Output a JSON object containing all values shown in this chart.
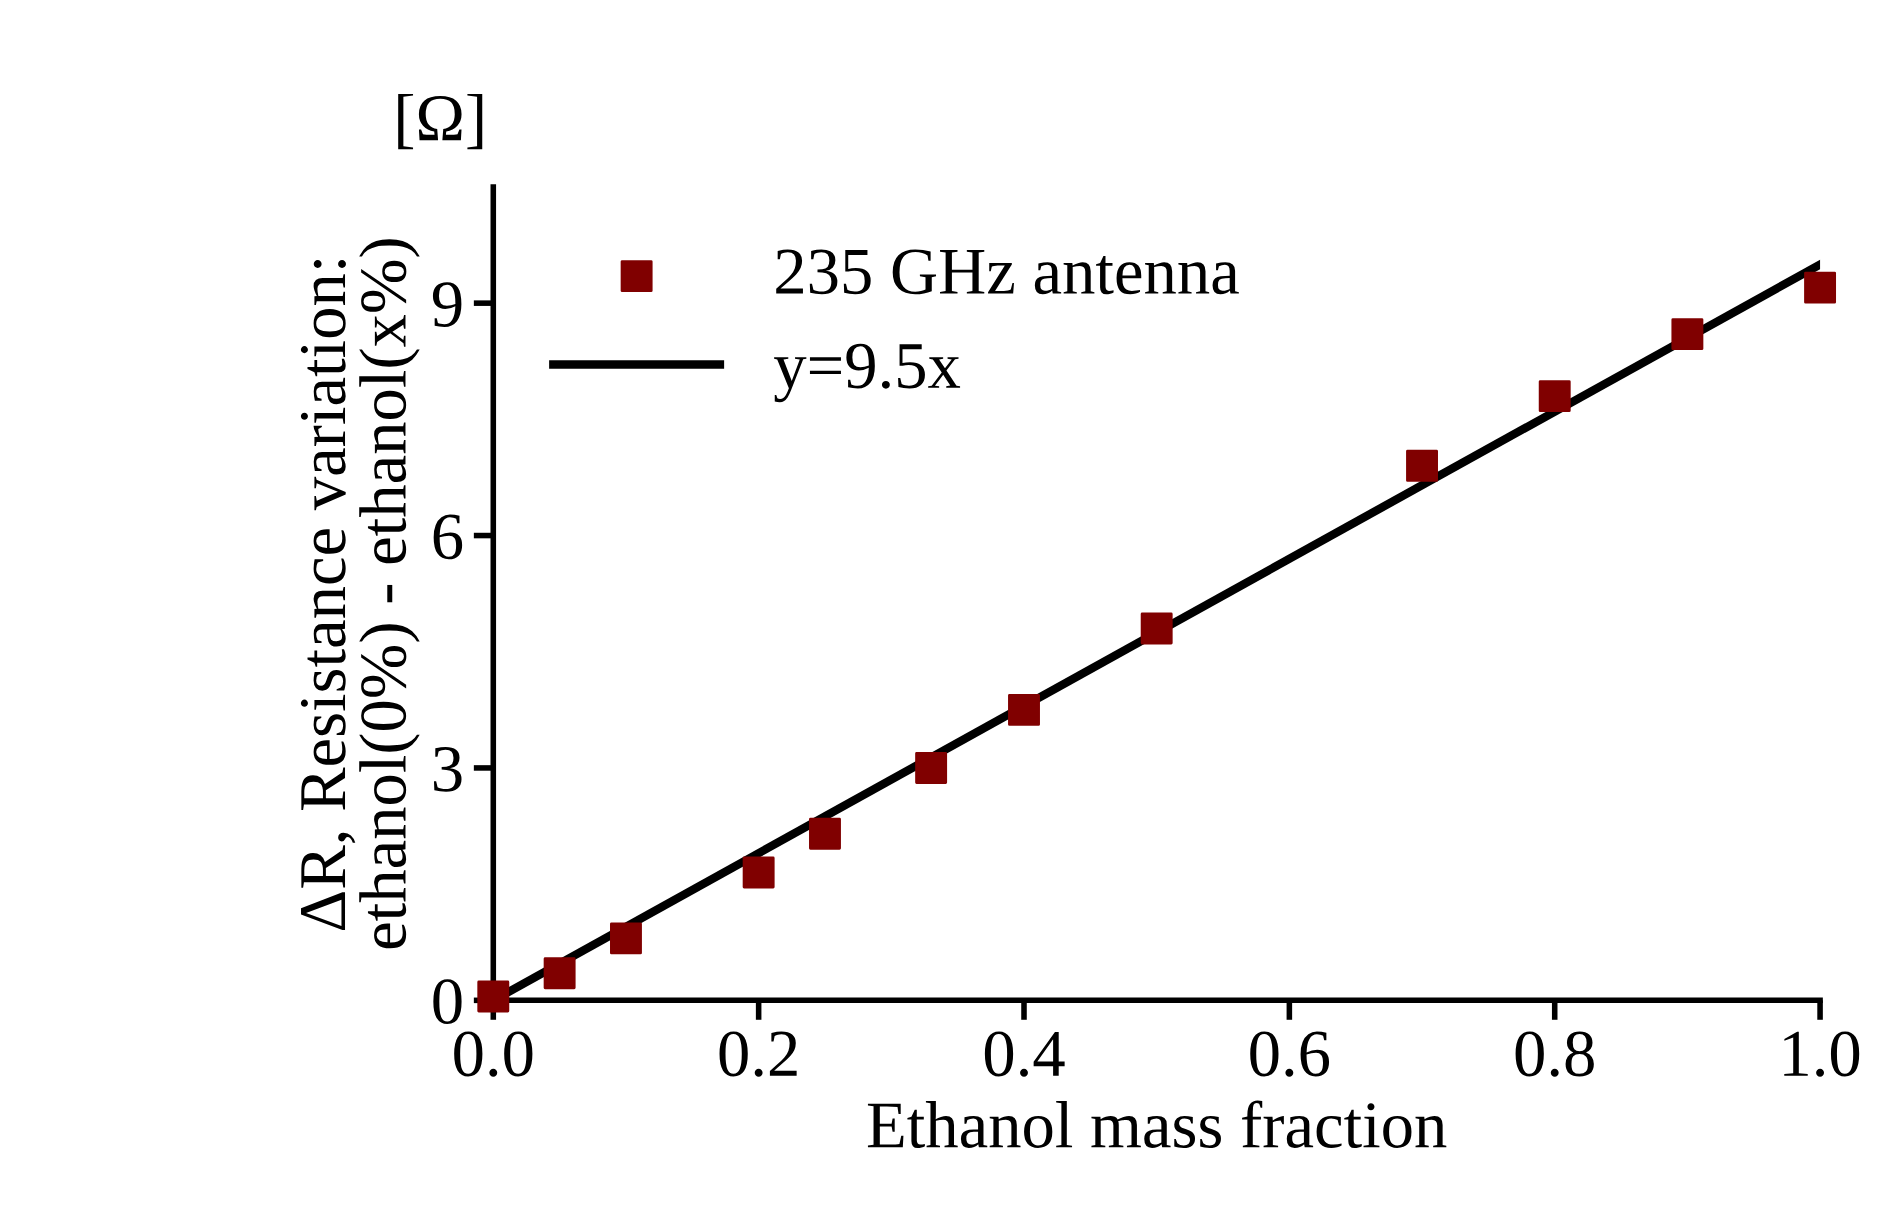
{
  "chart_data": {
    "type": "scatter",
    "xlabel": "Ethanol mass fraction",
    "ylabel": "ΔR, Resistance variation:\nethanol(0%) - ethanol(x%)",
    "annotations": [
      "[Ω]"
    ],
    "series": [
      {
        "name": "235 GHz antenna",
        "color": "#800000",
        "marker": "square",
        "x": [
          0,
          0.05,
          0.1,
          0.2,
          0.25,
          0.33,
          0.4,
          0.5,
          0.7,
          0.8,
          0.9,
          1.0
        ],
        "values": [
          0.05,
          0.35,
          0.8,
          1.65,
          2.15,
          3.0,
          3.75,
          4.8,
          6.9,
          7.8,
          8.6,
          9.2
        ]
      },
      {
        "name": "y=9.5x",
        "type": "line",
        "color": "#000000",
        "line_style": "solid",
        "x": [
          0,
          1
        ],
        "values": [
          0,
          9.5
        ]
      }
    ],
    "xlim": [
      0,
      1.0
    ],
    "ylim": [
      0,
      10.5
    ],
    "xticks": [
      {
        "value": 0,
        "label": "0.0"
      },
      {
        "value": 0.2,
        "label": "0.2"
      },
      {
        "value": 0.4,
        "label": "0.4"
      },
      {
        "value": 0.6,
        "label": "0.6"
      },
      {
        "value": 0.8,
        "label": "0.8"
      },
      {
        "value": 1.0,
        "label": "1.0"
      }
    ],
    "yticks": [
      0,
      3,
      6,
      9
    ],
    "legend": "top left"
  }
}
